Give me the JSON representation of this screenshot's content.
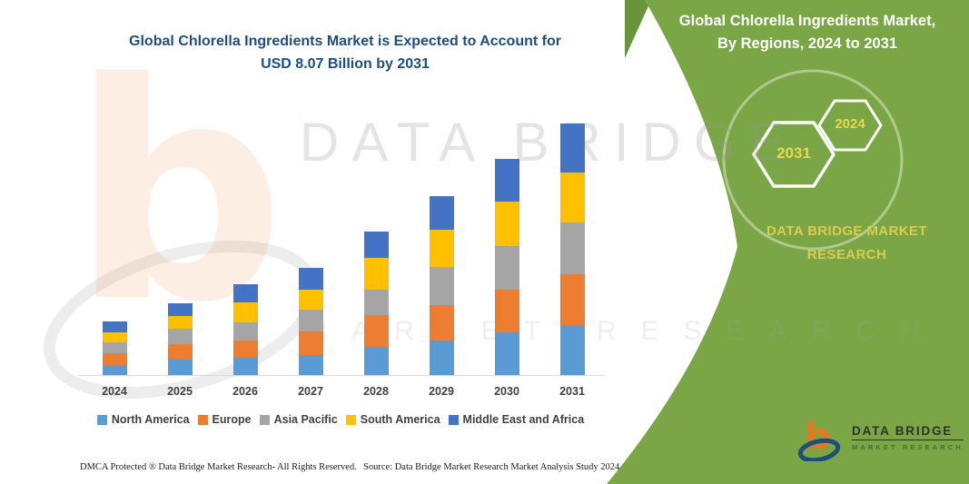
{
  "chart_header": {
    "title_line1": "Global Chlorella Ingredients Market is Expected to Account for",
    "title_line2": "USD 8.07 Billion by 2031"
  },
  "side_panel": {
    "title_line1": "Global Chlorella Ingredients Market,",
    "title_line2": "By Regions, 2024 to 2031",
    "hexagon_left_year": "2031",
    "hexagon_right_year": "2024",
    "caption_line1": "DATA BRIDGE MARKET",
    "caption_line2": "RESEARCH",
    "colors": {
      "panel_green": "#7AA646",
      "dark_green_triangle": "#68953A",
      "gold_text": "#DCCB4E",
      "hex_year_text": "#E8D84F"
    }
  },
  "watermark": {
    "letter": "b",
    "line1": "DATA BRIDGE",
    "line2": "MARKET RESEARCH"
  },
  "chart_data": {
    "type": "bar",
    "subtype": "stacked-vertical",
    "title": "Global Chlorella Ingredients Market is Expected to Account for USD 8.07 Billion by 2031",
    "unit": "USD Billion",
    "categories": [
      "2024",
      "2025",
      "2026",
      "2027",
      "2028",
      "2029",
      "2030",
      "2031"
    ],
    "series": [
      {
        "name": "North America",
        "color": "#5B9BD5",
        "values": [
          0.32,
          0.5,
          0.55,
          0.64,
          0.9,
          1.11,
          1.37,
          1.6
        ]
      },
      {
        "name": "Europe",
        "color": "#ED7D31",
        "values": [
          0.38,
          0.5,
          0.55,
          0.76,
          1.02,
          1.14,
          1.37,
          1.63
        ]
      },
      {
        "name": "Asia Pacific",
        "color": "#A5A5A5",
        "values": [
          0.35,
          0.47,
          0.58,
          0.7,
          0.82,
          1.22,
          1.4,
          1.66
        ]
      },
      {
        "name": "South America",
        "color": "#FFC000",
        "values": [
          0.32,
          0.41,
          0.64,
          0.64,
          1.02,
          1.19,
          1.4,
          1.6
        ]
      },
      {
        "name": "Middle East and Africa",
        "color": "#4472C4",
        "values": [
          0.35,
          0.41,
          0.58,
          0.7,
          0.84,
          1.08,
          1.37,
          1.57
        ]
      }
    ],
    "totals_by_year": [
      1.72,
      2.29,
      2.9,
      3.44,
      4.6,
      5.74,
      6.91,
      8.07
    ],
    "ylim": [
      0,
      8.5
    ],
    "gridlines": false,
    "legend_position": "bottom",
    "axis_color": "#D9D9D9",
    "label_color": "#404040"
  },
  "footer": {
    "left": "DMCA Protected ® Data Bridge Market Research-  All Rights Reserved.",
    "right": "Source: Data Bridge Market Research  Market Analysis Study 2024"
  },
  "logo": {
    "name": "DATA BRIDGE",
    "subtext": "MARKET RESEARCH"
  }
}
